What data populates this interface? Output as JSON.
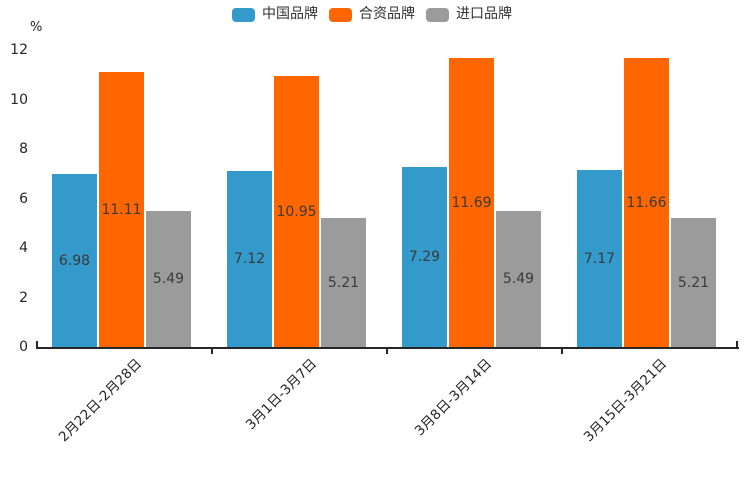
{
  "chart_data": {
    "type": "bar",
    "title": "",
    "unit_label": "%",
    "xlabel": "",
    "ylabel": "%",
    "ylim": [
      0,
      12
    ],
    "yticks": [
      0,
      2,
      4,
      6,
      8,
      10,
      12
    ],
    "grid": false,
    "legend_position": "top-center",
    "value_labels": "inside-center",
    "x_tick_label_rotation": 45,
    "categories": [
      "2月22日-2月28日",
      "3月1日-3月7日",
      "3月8日-3月14日",
      "3月15日-3月21日"
    ],
    "series": [
      {
        "name": "中国品牌",
        "color": "#3499CB",
        "values": [
          6.98,
          7.12,
          7.29,
          7.17
        ]
      },
      {
        "name": "合资品牌",
        "color": "#FF6600",
        "values": [
          11.11,
          10.95,
          11.69,
          11.66
        ]
      },
      {
        "name": "进口品牌",
        "color": "#9B9B9B",
        "values": [
          5.49,
          5.21,
          5.49,
          5.21
        ]
      }
    ]
  },
  "colors": {
    "background": "#FFFFFF",
    "axis_line": "#262626",
    "tick_label_text": "#262626",
    "value_label_text": "#3A3A3A",
    "legend_text": "#333333"
  }
}
